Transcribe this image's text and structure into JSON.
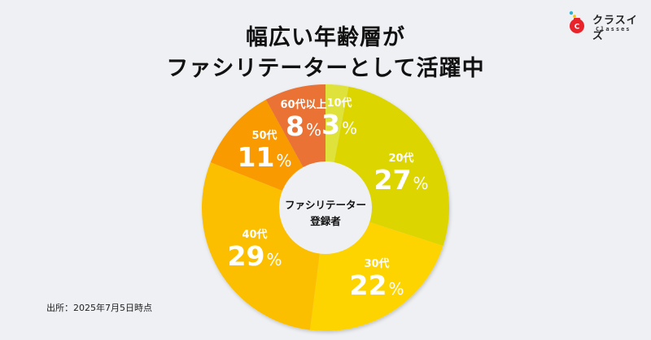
{
  "title": {
    "line1": "幅広い年齢層が",
    "line2": "ファシリテーターとして活躍中"
  },
  "logo": {
    "name": "クラスイズ",
    "sub": "Classes",
    "icon": "red-bag-icon"
  },
  "center_label": {
    "line1": "ファシリテーター",
    "line2": "登録者"
  },
  "source": "出所：2025年7月5日時点",
  "slices": [
    {
      "age": "10代",
      "pct": "3",
      "color": "#dfe23a"
    },
    {
      "age": "20代",
      "pct": "27",
      "color": "#dcd500"
    },
    {
      "age": "30代",
      "pct": "22",
      "color": "#fdd400"
    },
    {
      "age": "40代",
      "pct": "29",
      "color": "#fcbf00"
    },
    {
      "age": "50代",
      "pct": "11",
      "color": "#f99a00"
    },
    {
      "age": "60代以上",
      "pct": "8",
      "color": "#ea7236"
    }
  ],
  "percent_symbol": "%",
  "chart_data": {
    "type": "pie",
    "subtype": "donut",
    "title": "幅広い年齢層がファシリテーターとして活躍中",
    "center_text": "ファシリテーター登録者",
    "categories": [
      "10代",
      "20代",
      "30代",
      "40代",
      "50代",
      "60代以上"
    ],
    "values": [
      3,
      27,
      22,
      29,
      11,
      8
    ],
    "unit": "%",
    "colors": [
      "#dfe23a",
      "#dcd500",
      "#fdd400",
      "#fcbf00",
      "#f99a00",
      "#ea7236"
    ],
    "start_angle": "12 o'clock",
    "direction": "clockwise",
    "legend": "none (labels on slices)",
    "annotation": "出所：2025年7月5日時点"
  }
}
